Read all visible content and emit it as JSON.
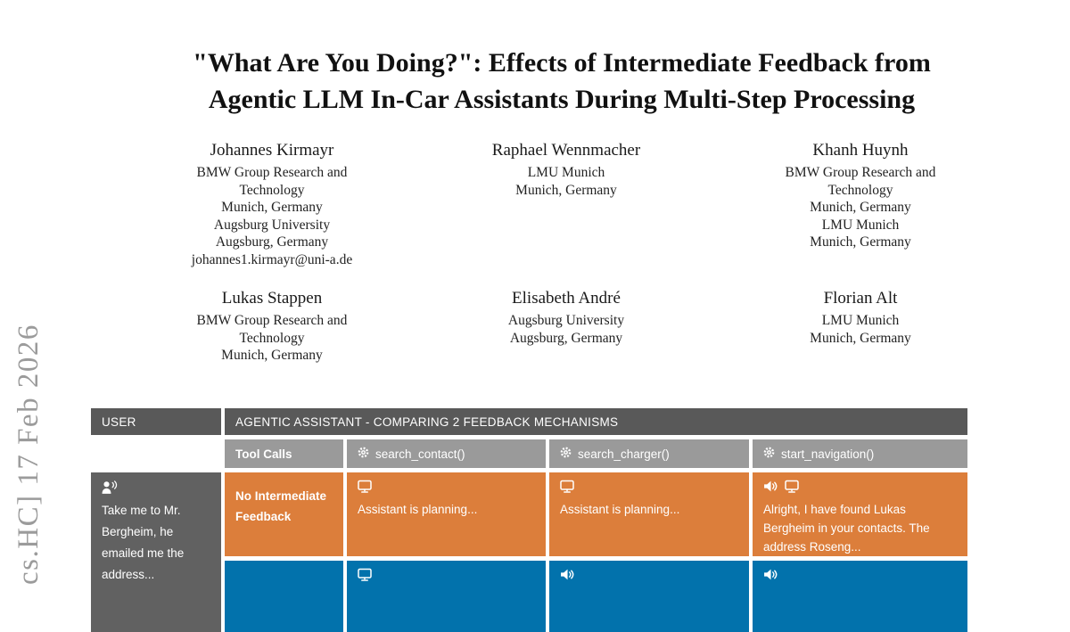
{
  "arxiv_stamp": {
    "text": "cs.HC] 17 Feb 2026",
    "color": "#9b9b9b"
  },
  "paper": {
    "title_line1": "\"What Are You Doing?\": Effects of Intermediate Feedback from",
    "title_line2": "Agentic LLM In-Car Assistants During Multi-Step Processing",
    "authors": [
      {
        "name": "Johannes Kirmayr",
        "lines": [
          "BMW Group Research and",
          "Technology",
          "Munich, Germany",
          "Augsburg University",
          "Augsburg, Germany",
          "johannes1.kirmayr@uni-a.de"
        ]
      },
      {
        "name": "Raphael Wennmacher",
        "lines": [
          "LMU Munich",
          "Munich, Germany"
        ]
      },
      {
        "name": "Khanh Huynh",
        "lines": [
          "BMW Group Research and",
          "Technology",
          "Munich, Germany",
          "LMU Munich",
          "Munich, Germany"
        ]
      },
      {
        "name": "Lukas Stappen",
        "lines": [
          "BMW Group Research and",
          "Technology",
          "Munich, Germany"
        ]
      },
      {
        "name": "Elisabeth André",
        "lines": [
          "Augsburg University",
          "Augsburg, Germany"
        ]
      },
      {
        "name": "Florian Alt",
        "lines": [
          "LMU Munich",
          "Munich, Germany"
        ]
      }
    ]
  },
  "figure": {
    "user_header": "USER",
    "assistant_header": "AGENTIC ASSISTANT - COMPARING 2 FEEDBACK MECHANISMS",
    "tool_calls_label": "Tool Calls",
    "tool_calls": [
      {
        "icon": "gear-icon",
        "label": "search_contact()"
      },
      {
        "icon": "gear-icon",
        "label": "search_charger()"
      },
      {
        "icon": "gear-icon",
        "label": "start_navigation()"
      }
    ],
    "user_message": {
      "icon": "person-speaking-icon",
      "text": "Take me to Mr. Bergheim, he emailed me the address..."
    },
    "rows": [
      {
        "label": "No Intermediate Feedback",
        "color": "#DC7E3B",
        "cells": [
          {
            "icons": [
              "monitor-icon"
            ],
            "text": "Assistant is planning..."
          },
          {
            "icons": [
              "monitor-icon"
            ],
            "text": "Assistant is planning..."
          },
          {
            "icons": [
              "speaker-icon",
              "monitor-icon"
            ],
            "text": "Alright, I have found Lukas Bergheim in your contacts. The address Roseng..."
          }
        ]
      },
      {
        "label": "",
        "color": "#0272AC",
        "cells": [
          {
            "icons": [
              "monitor-icon"
            ],
            "text": ""
          },
          {
            "icons": [
              "speaker-icon"
            ],
            "text": ""
          },
          {
            "icons": [
              "speaker-icon"
            ],
            "text": ""
          }
        ]
      }
    ],
    "colors": {
      "header_dark": "#595959",
      "tool_row_gray": "#9A9A9A",
      "user_cell_gray": "#616161",
      "no_feedback_orange": "#DC7E3B",
      "feedback_blue": "#0272AC"
    }
  }
}
